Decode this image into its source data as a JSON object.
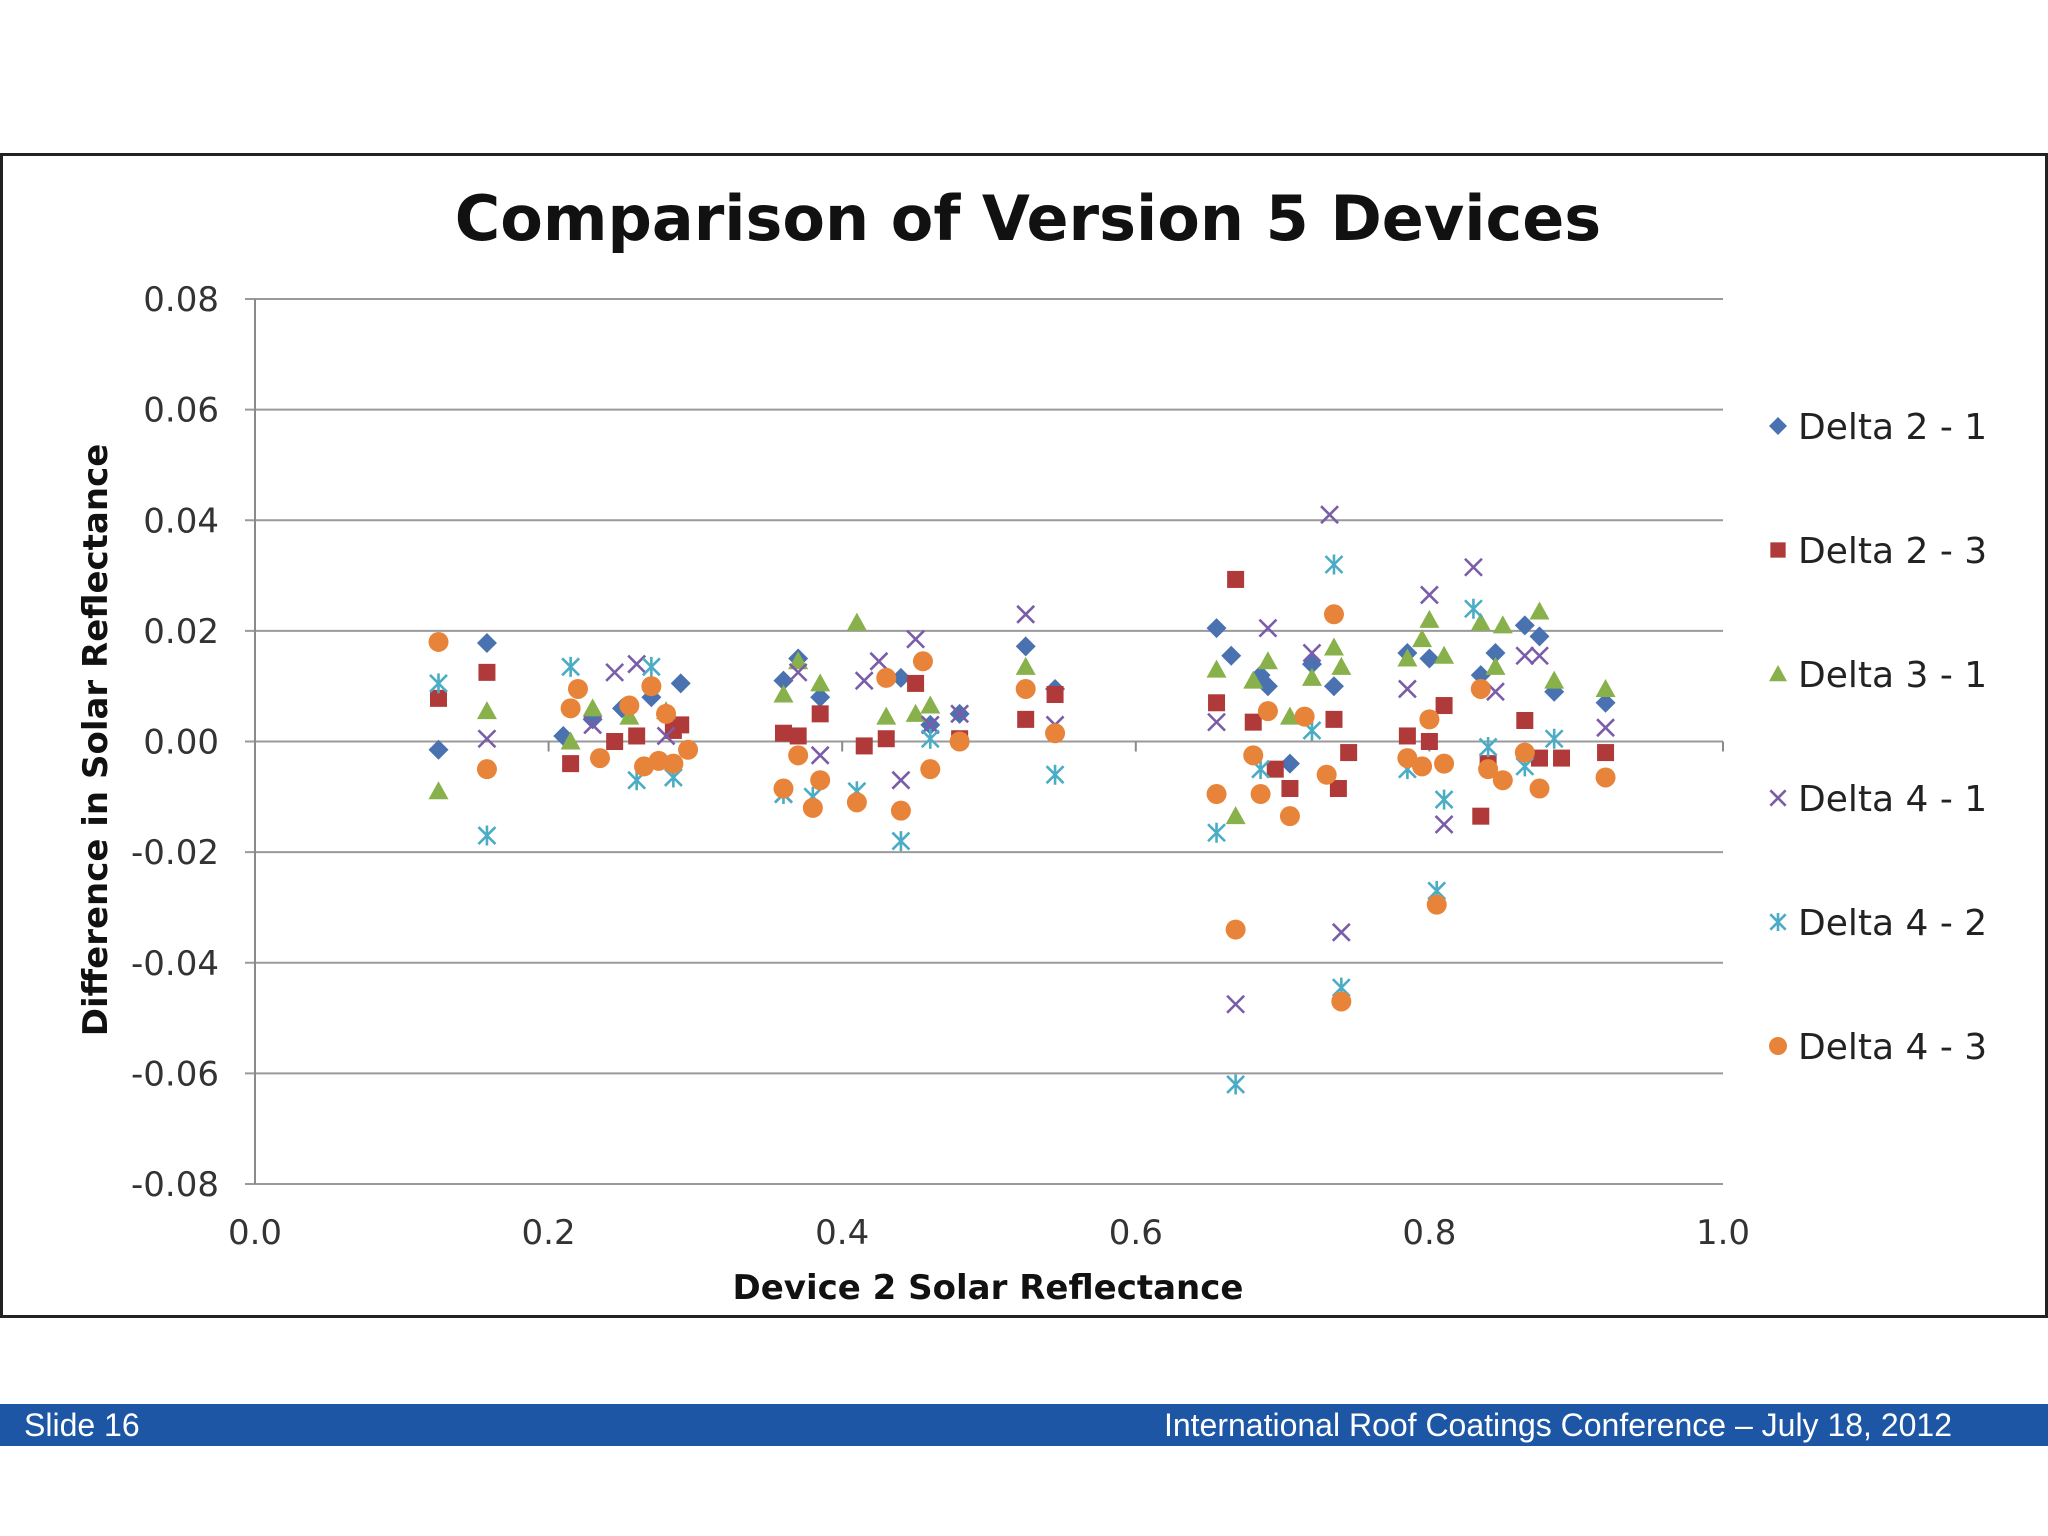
{
  "footer": {
    "slide_label": "Slide 16",
    "conference": "International Roof Coatings Conference – July 18, 2012"
  },
  "chart_data": {
    "type": "scatter",
    "title": "Comparison of Version 5 Devices",
    "xlabel": "Device 2 Solar Reflectance",
    "ylabel": "Difference in Solar Reflectance",
    "xlim": [
      0.0,
      1.0
    ],
    "ylim": [
      -0.08,
      0.08
    ],
    "xticks": [
      "0.0",
      "0.2",
      "0.4",
      "0.6",
      "0.8",
      "1.0"
    ],
    "yticks": [
      "0.08",
      "0.06",
      "0.04",
      "0.02",
      "0.00",
      "-0.02",
      "-0.04",
      "-0.06",
      "-0.08"
    ],
    "grid": "horizontal",
    "legend_position": "right",
    "series": [
      {
        "name": "Delta 2 - 1",
        "marker": "diamond",
        "color": "#4a72b0",
        "points": [
          [
            0.125,
            -0.0015
          ],
          [
            0.158,
            0.0178
          ],
          [
            0.21,
            0.001
          ],
          [
            0.23,
            0.004
          ],
          [
            0.25,
            0.006
          ],
          [
            0.27,
            0.008
          ],
          [
            0.29,
            0.0105
          ],
          [
            0.36,
            0.011
          ],
          [
            0.37,
            0.015
          ],
          [
            0.385,
            0.008
          ],
          [
            0.44,
            0.0115
          ],
          [
            0.46,
            0.003
          ],
          [
            0.48,
            0.005
          ],
          [
            0.525,
            0.0172
          ],
          [
            0.545,
            0.0095
          ],
          [
            0.655,
            0.0205
          ],
          [
            0.665,
            0.0155
          ],
          [
            0.685,
            0.012
          ],
          [
            0.69,
            0.01
          ],
          [
            0.705,
            -0.004
          ],
          [
            0.72,
            0.014
          ],
          [
            0.735,
            0.01
          ],
          [
            0.785,
            0.016
          ],
          [
            0.8,
            0.015
          ],
          [
            0.835,
            0.012
          ],
          [
            0.845,
            0.016
          ],
          [
            0.865,
            0.021
          ],
          [
            0.875,
            0.019
          ],
          [
            0.885,
            0.009
          ],
          [
            0.92,
            0.007
          ]
        ]
      },
      {
        "name": "Delta 2 - 3",
        "marker": "square",
        "color": "#b03a3a",
        "points": [
          [
            0.125,
            0.0078
          ],
          [
            0.158,
            0.0125
          ],
          [
            0.215,
            -0.004
          ],
          [
            0.245,
            0.0
          ],
          [
            0.26,
            0.001
          ],
          [
            0.285,
            0.002
          ],
          [
            0.29,
            0.003
          ],
          [
            0.36,
            0.0015
          ],
          [
            0.37,
            0.001
          ],
          [
            0.385,
            0.005
          ],
          [
            0.415,
            -0.0008
          ],
          [
            0.43,
            0.0005
          ],
          [
            0.45,
            0.0105
          ],
          [
            0.48,
            0.0005
          ],
          [
            0.525,
            0.004
          ],
          [
            0.545,
            0.0085
          ],
          [
            0.655,
            0.007
          ],
          [
            0.668,
            0.0293
          ],
          [
            0.68,
            0.0035
          ],
          [
            0.695,
            -0.005
          ],
          [
            0.705,
            -0.0085
          ],
          [
            0.735,
            0.004
          ],
          [
            0.738,
            -0.0085
          ],
          [
            0.745,
            -0.002
          ],
          [
            0.785,
            0.001
          ],
          [
            0.8,
            0.0
          ],
          [
            0.81,
            0.0065
          ],
          [
            0.835,
            -0.0135
          ],
          [
            0.84,
            -0.004
          ],
          [
            0.865,
            0.0038
          ],
          [
            0.875,
            -0.003
          ],
          [
            0.89,
            -0.003
          ],
          [
            0.92,
            -0.002
          ]
        ]
      },
      {
        "name": "Delta 3 - 1",
        "marker": "triangle",
        "color": "#88b04b",
        "points": [
          [
            0.125,
            -0.009
          ],
          [
            0.158,
            0.0055
          ],
          [
            0.215,
            0.0
          ],
          [
            0.23,
            0.006
          ],
          [
            0.255,
            0.0045
          ],
          [
            0.28,
            0.0055
          ],
          [
            0.36,
            0.0085
          ],
          [
            0.37,
            0.0145
          ],
          [
            0.385,
            0.0105
          ],
          [
            0.41,
            0.0215
          ],
          [
            0.43,
            0.0045
          ],
          [
            0.45,
            0.005
          ],
          [
            0.46,
            0.0065
          ],
          [
            0.525,
            0.0135
          ],
          [
            0.655,
            0.013
          ],
          [
            0.668,
            -0.0135
          ],
          [
            0.68,
            0.011
          ],
          [
            0.69,
            0.0145
          ],
          [
            0.705,
            0.0045
          ],
          [
            0.72,
            0.0115
          ],
          [
            0.735,
            0.017
          ],
          [
            0.74,
            0.0135
          ],
          [
            0.785,
            0.015
          ],
          [
            0.795,
            0.0185
          ],
          [
            0.8,
            0.022
          ],
          [
            0.81,
            0.0155
          ],
          [
            0.835,
            0.0215
          ],
          [
            0.845,
            0.0135
          ],
          [
            0.85,
            0.021
          ],
          [
            0.875,
            0.0235
          ],
          [
            0.885,
            0.011
          ],
          [
            0.92,
            0.0095
          ]
        ]
      },
      {
        "name": "Delta 4 - 1",
        "marker": "x",
        "color": "#7a5ca8",
        "points": [
          [
            0.158,
            0.0005
          ],
          [
            0.23,
            0.003
          ],
          [
            0.245,
            0.0125
          ],
          [
            0.26,
            0.014
          ],
          [
            0.28,
            0.001
          ],
          [
            0.36,
            -0.0095
          ],
          [
            0.37,
            0.0125
          ],
          [
            0.385,
            -0.0025
          ],
          [
            0.415,
            0.011
          ],
          [
            0.425,
            0.0145
          ],
          [
            0.44,
            -0.007
          ],
          [
            0.45,
            0.0185
          ],
          [
            0.46,
            0.003
          ],
          [
            0.48,
            0.005
          ],
          [
            0.525,
            0.023
          ],
          [
            0.545,
            0.003
          ],
          [
            0.655,
            0.0035
          ],
          [
            0.668,
            -0.0475
          ],
          [
            0.69,
            0.0205
          ],
          [
            0.72,
            0.016
          ],
          [
            0.732,
            0.041
          ],
          [
            0.74,
            -0.0345
          ],
          [
            0.785,
            0.0095
          ],
          [
            0.8,
            0.0265
          ],
          [
            0.81,
            -0.015
          ],
          [
            0.83,
            0.0315
          ],
          [
            0.845,
            0.009
          ],
          [
            0.865,
            0.0155
          ],
          [
            0.875,
            0.0155
          ],
          [
            0.92,
            0.0025
          ]
        ]
      },
      {
        "name": "Delta 4 - 2",
        "marker": "asterisk",
        "color": "#4aacc5",
        "points": [
          [
            0.125,
            0.0105
          ],
          [
            0.158,
            -0.017
          ],
          [
            0.215,
            0.0135
          ],
          [
            0.26,
            -0.007
          ],
          [
            0.27,
            0.0135
          ],
          [
            0.285,
            -0.0065
          ],
          [
            0.36,
            -0.0095
          ],
          [
            0.38,
            -0.01
          ],
          [
            0.41,
            -0.009
          ],
          [
            0.44,
            -0.018
          ],
          [
            0.46,
            0.0005
          ],
          [
            0.545,
            -0.006
          ],
          [
            0.655,
            -0.0165
          ],
          [
            0.668,
            -0.062
          ],
          [
            0.685,
            -0.005
          ],
          [
            0.72,
            0.002
          ],
          [
            0.735,
            0.032
          ],
          [
            0.74,
            -0.0445
          ],
          [
            0.785,
            -0.005
          ],
          [
            0.805,
            -0.027
          ],
          [
            0.81,
            -0.0105
          ],
          [
            0.83,
            0.024
          ],
          [
            0.84,
            -0.001
          ],
          [
            0.865,
            -0.0045
          ],
          [
            0.885,
            0.0005
          ]
        ]
      },
      {
        "name": "Delta 4 - 3",
        "marker": "circle",
        "color": "#e8843a",
        "points": [
          [
            0.125,
            0.018
          ],
          [
            0.158,
            -0.005
          ],
          [
            0.215,
            0.006
          ],
          [
            0.22,
            0.0095
          ],
          [
            0.235,
            -0.003
          ],
          [
            0.255,
            0.0065
          ],
          [
            0.265,
            -0.0045
          ],
          [
            0.27,
            0.01
          ],
          [
            0.275,
            -0.0035
          ],
          [
            0.28,
            0.005
          ],
          [
            0.285,
            -0.004
          ],
          [
            0.295,
            -0.0015
          ],
          [
            0.36,
            -0.0085
          ],
          [
            0.37,
            -0.0025
          ],
          [
            0.38,
            -0.012
          ],
          [
            0.385,
            -0.007
          ],
          [
            0.41,
            -0.011
          ],
          [
            0.43,
            0.0115
          ],
          [
            0.44,
            -0.0125
          ],
          [
            0.455,
            0.0145
          ],
          [
            0.46,
            -0.005
          ],
          [
            0.48,
            0.0
          ],
          [
            0.525,
            0.0095
          ],
          [
            0.545,
            0.0015
          ],
          [
            0.655,
            -0.0095
          ],
          [
            0.668,
            -0.034
          ],
          [
            0.68,
            -0.0025
          ],
          [
            0.685,
            -0.0095
          ],
          [
            0.69,
            0.0055
          ],
          [
            0.705,
            -0.0135
          ],
          [
            0.715,
            0.0045
          ],
          [
            0.735,
            0.023
          ],
          [
            0.73,
            -0.006
          ],
          [
            0.74,
            -0.047
          ],
          [
            0.785,
            -0.003
          ],
          [
            0.795,
            -0.0045
          ],
          [
            0.8,
            0.004
          ],
          [
            0.805,
            -0.0295
          ],
          [
            0.81,
            -0.004
          ],
          [
            0.835,
            0.0095
          ],
          [
            0.84,
            -0.005
          ],
          [
            0.85,
            -0.007
          ],
          [
            0.865,
            -0.002
          ],
          [
            0.875,
            -0.0085
          ],
          [
            0.92,
            -0.0065
          ]
        ]
      }
    ]
  }
}
